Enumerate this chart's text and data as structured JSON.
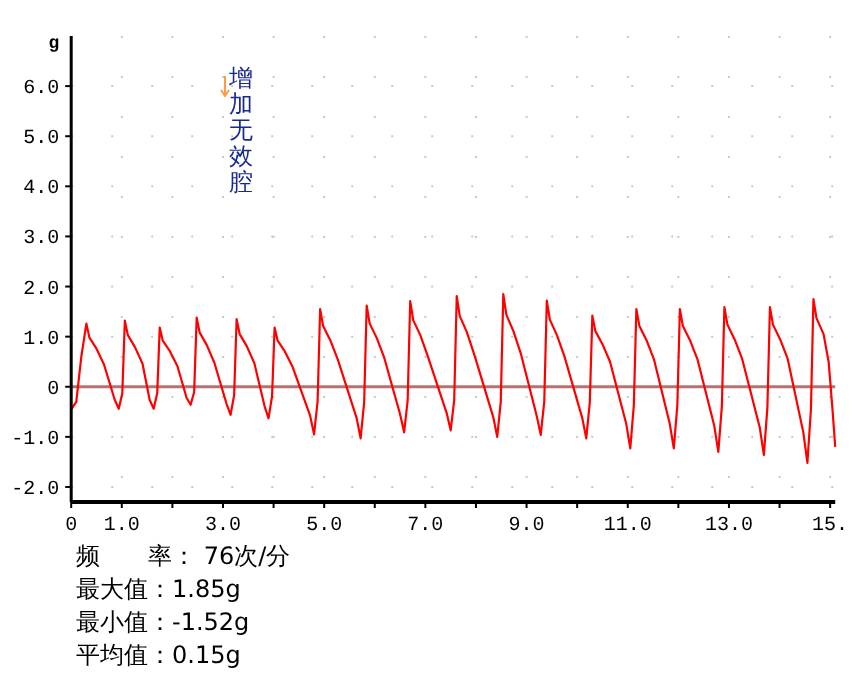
{
  "chart_data": {
    "type": "line",
    "ylabel": "g",
    "x": [
      0,
      0.1,
      0.2,
      0.3,
      0.36,
      0.5,
      0.65,
      0.86,
      0.94,
      1.01,
      1.06,
      1.12,
      1.26,
      1.41,
      1.55,
      1.63,
      1.7,
      1.75,
      1.81,
      1.95,
      2.1,
      2.28,
      2.36,
      2.43,
      2.48,
      2.54,
      2.68,
      2.83,
      3.07,
      3.15,
      3.22,
      3.27,
      3.33,
      3.47,
      3.62,
      3.82,
      3.9,
      3.97,
      4.02,
      4.08,
      4.22,
      4.37,
      4.72,
      4.8,
      4.87,
      4.92,
      4.98,
      5.12,
      5.27,
      5.64,
      5.72,
      5.79,
      5.84,
      5.9,
      6.04,
      6.19,
      6.5,
      6.58,
      6.65,
      6.7,
      6.76,
      6.9,
      7.05,
      7.42,
      7.5,
      7.57,
      7.62,
      7.68,
      7.82,
      7.97,
      8.34,
      8.42,
      8.49,
      8.54,
      8.6,
      8.74,
      8.89,
      9.2,
      9.28,
      9.35,
      9.4,
      9.46,
      9.6,
      9.75,
      10.1,
      10.18,
      10.25,
      10.3,
      10.36,
      10.5,
      10.65,
      10.97,
      11.05,
      11.12,
      11.17,
      11.23,
      11.37,
      11.52,
      11.83,
      11.91,
      11.98,
      12.03,
      12.09,
      12.23,
      12.38,
      12.71,
      12.79,
      12.86,
      12.91,
      12.97,
      13.11,
      13.26,
      13.61,
      13.69,
      13.76,
      13.81,
      13.87,
      14.01,
      14.16,
      14.47,
      14.55,
      14.62,
      14.67,
      14.73,
      14.87,
      14.97,
      15.05,
      15.1
    ],
    "series": [
      {
        "color": "#ff0000",
        "values": [
          -0.45,
          -0.3,
          0.6,
          1.26,
          0.98,
          0.76,
          0.44,
          -0.26,
          -0.44,
          -0.13,
          1.32,
          1.03,
          0.79,
          0.46,
          -0.26,
          -0.44,
          -0.13,
          1.18,
          0.92,
          0.71,
          0.41,
          -0.22,
          -0.36,
          -0.11,
          1.38,
          1.08,
          0.83,
          0.48,
          -0.34,
          -0.56,
          -0.17,
          1.35,
          1.05,
          0.81,
          0.47,
          -0.38,
          -0.63,
          -0.19,
          1.18,
          0.92,
          0.71,
          0.41,
          -0.57,
          -0.95,
          -0.29,
          1.55,
          1.21,
          0.93,
          0.54,
          -0.62,
          -1.03,
          -0.31,
          1.62,
          1.26,
          0.97,
          0.57,
          -0.55,
          -0.91,
          -0.27,
          1.71,
          1.33,
          1.03,
          0.6,
          -0.52,
          -0.87,
          -0.26,
          1.81,
          1.41,
          1.09,
          0.63,
          -0.6,
          -1.0,
          -0.3,
          1.85,
          1.44,
          1.11,
          0.65,
          -0.58,
          -0.96,
          -0.29,
          1.72,
          1.34,
          1.03,
          0.6,
          -0.62,
          -1.03,
          -0.31,
          1.42,
          1.11,
          0.85,
          0.5,
          -0.74,
          -1.23,
          -0.37,
          1.55,
          1.21,
          0.93,
          0.54,
          -0.74,
          -1.23,
          -0.37,
          1.55,
          1.21,
          0.93,
          0.54,
          -0.78,
          -1.3,
          -0.39,
          1.59,
          1.24,
          0.95,
          0.56,
          -0.82,
          -1.36,
          -0.41,
          1.59,
          1.24,
          0.95,
          0.56,
          -0.91,
          -1.52,
          -0.46,
          1.75,
          1.37,
          1.05,
          0.5,
          -0.5,
          -1.2
        ]
      }
    ],
    "xlim": [
      0,
      15.1
    ],
    "ylim": [
      -2.3,
      7.0
    ],
    "xticks": [
      {
        "value": 0,
        "label": "0"
      },
      {
        "value": 1,
        "label": "1.0"
      },
      {
        "value": 2,
        "label": null
      },
      {
        "value": 3,
        "label": "3.0"
      },
      {
        "value": 4,
        "label": null
      },
      {
        "value": 5,
        "label": "5.0"
      },
      {
        "value": 6,
        "label": null
      },
      {
        "value": 7,
        "label": "7.0"
      },
      {
        "value": 8,
        "label": null
      },
      {
        "value": 9,
        "label": "9.0"
      },
      {
        "value": 10,
        "label": null
      },
      {
        "value": 11,
        "label": "11.0"
      },
      {
        "value": 12,
        "label": null
      },
      {
        "value": 13,
        "label": "13.0"
      },
      {
        "value": 14,
        "label": null
      },
      {
        "value": 15,
        "label": "15."
      }
    ],
    "yticks": [
      {
        "value": -2,
        "label": "-2.0"
      },
      {
        "value": -1,
        "label": "-1.0"
      },
      {
        "value": 0,
        "label": "0"
      },
      {
        "value": 1,
        "label": "1.0"
      },
      {
        "value": 2,
        "label": "2.0"
      },
      {
        "value": 3,
        "label": "3.0"
      },
      {
        "value": 4,
        "label": "4.0"
      },
      {
        "value": 5,
        "label": "5.0"
      },
      {
        "value": 6,
        "label": "6.0"
      }
    ],
    "grid": true,
    "ref_lines": [
      {
        "axis": "y",
        "value": 0,
        "color": "#b87070"
      }
    ],
    "annotations": [
      "增加无效腔",
      "频　　率： 76次/分",
      "最大值：1.85g",
      "最小值：-1.52g",
      "平均值：0.15g"
    ]
  }
}
